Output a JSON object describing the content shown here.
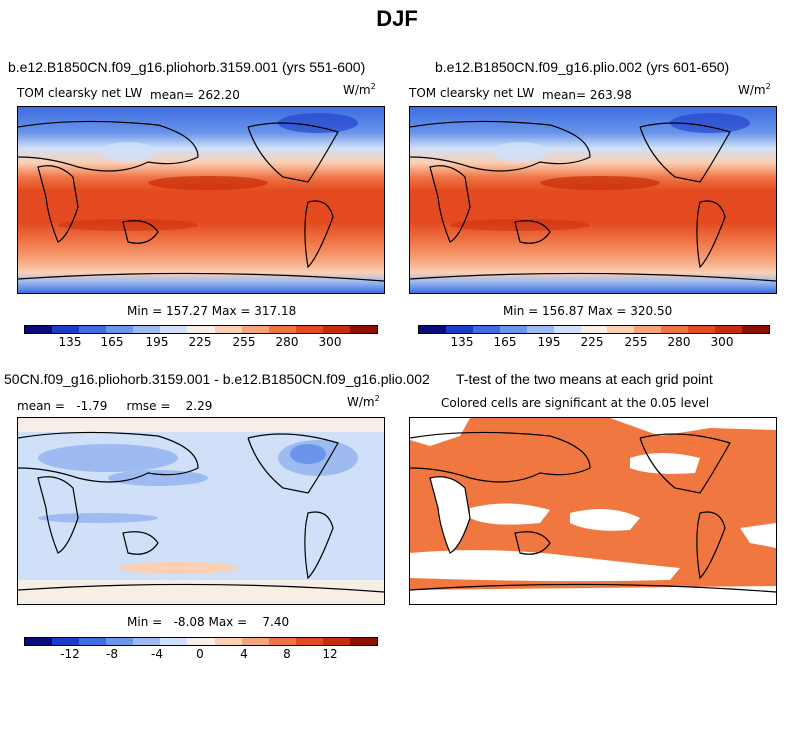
{
  "page": {
    "title": "DJF"
  },
  "panels": [
    {
      "title": "b.e12.B1850CN.f09_g16.pliohorb.3159.001 (yrs 551-600)",
      "left_label": "TOM clearsky net LW",
      "mean_label": "mean= 262.20",
      "units_base": "W/m",
      "units_exp": "2",
      "minmax": "Min = 157.27 Max = 317.18"
    },
    {
      "title": "b.e12.B1850CN.f09_g16.plio.002 (yrs 601-650)",
      "left_label": "TOM clearsky net LW",
      "mean_label": "mean= 263.98",
      "units_base": "W/m",
      "units_exp": "2",
      "minmax": "Min = 156.87 Max = 320.50"
    },
    {
      "title": "50CN.f09_g16.pliohorb.3159.001 - b.e12.B1850CN.f09_g16.plio.002",
      "left_label": "mean =   -1.79     rmse =    2.29",
      "units_base": "W/m",
      "units_exp": "2",
      "minmax": "Min =   -8.08 Max =    7.40"
    },
    {
      "title": "T-test of the two means at each grid point",
      "subtitle": "Colored cells are significant at the 0.05 level"
    }
  ],
  "colors": {
    "abs_scale": [
      "#0a0a7a",
      "#1a3cc8",
      "#3d6de0",
      "#6b95ea",
      "#9dbbf1",
      "#cfe0f8",
      "#f7eee6",
      "#fbcfb3",
      "#f6a27a",
      "#ef7445",
      "#e34a1f",
      "#c82c0c",
      "#8c0f04"
    ],
    "diff_scale": [
      "#0a0a7a",
      "#1a3cc8",
      "#3d6de0",
      "#6b95ea",
      "#9dbbf1",
      "#cfe0f8",
      "#f7eee6",
      "#fbcfb3",
      "#f6a27a",
      "#ef7445",
      "#e34a1f",
      "#c82c0c",
      "#8c0f04"
    ],
    "significant": "#f07840"
  },
  "chart_data": [
    {
      "type": "heatmap",
      "title": "b.e12.B1850CN.f09_g16.pliohorb.3159.001 (yrs 551-600)",
      "variable": "TOM clearsky net LW",
      "units": "W/m^2",
      "mean": 262.2,
      "min": 157.27,
      "max": 317.18,
      "legend_ticks": [
        135,
        165,
        195,
        225,
        255,
        280,
        300
      ]
    },
    {
      "type": "heatmap",
      "title": "b.e12.B1850CN.f09_g16.plio.002 (yrs 601-650)",
      "variable": "TOM clearsky net LW",
      "units": "W/m^2",
      "mean": 263.98,
      "min": 156.87,
      "max": 320.5,
      "legend_ticks": [
        135,
        165,
        195,
        225,
        255,
        280,
        300
      ]
    },
    {
      "type": "heatmap",
      "title": "50CN.f09_g16.pliohorb.3159.001 - b.e12.B1850CN.f09_g16.plio.002",
      "units": "W/m^2",
      "mean": -1.79,
      "rmse": 2.29,
      "min": -8.08,
      "max": 7.4,
      "legend_ticks": [
        -12,
        -8,
        -4,
        0,
        4,
        8,
        12
      ]
    },
    {
      "type": "heatmap",
      "title": "T-test of the two means at each grid point",
      "note": "Colored cells are significant at the 0.05 level"
    }
  ]
}
